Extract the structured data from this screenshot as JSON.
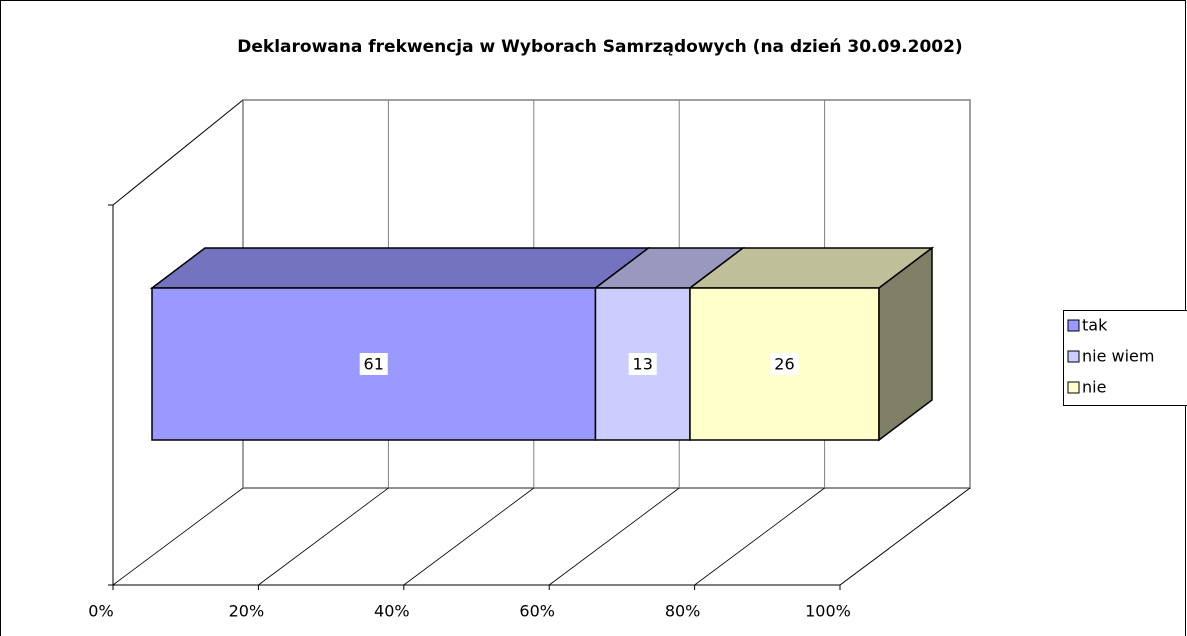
{
  "chart_data": {
    "type": "bar",
    "orientation": "horizontal",
    "stacked": true,
    "three_d": true,
    "title": "Deklarowana frekwencja w Wyborach Samrządowych (na dzień 30.09.2002)",
    "categories": [
      null
    ],
    "series": [
      {
        "name": "tak",
        "color": "#9999ff",
        "top_color": "#7373bf",
        "side_color": "#5c5c99",
        "values": [
          61
        ]
      },
      {
        "name": "nie wiem",
        "color": "#ccccff",
        "top_color": "#9999bf",
        "side_color": "#7a7a99",
        "values": [
          13
        ]
      },
      {
        "name": "nie",
        "color": "#ffffcc",
        "top_color": "#bfbf99",
        "side_color": "#808066",
        "values": [
          26
        ]
      }
    ],
    "xlim": [
      0,
      100
    ],
    "xticks": [
      {
        "value": 0,
        "label": "0%"
      },
      {
        "value": 20,
        "label": "20%"
      },
      {
        "value": 40,
        "label": "40%"
      },
      {
        "value": 60,
        "label": "60%"
      },
      {
        "value": 80,
        "label": "80%"
      },
      {
        "value": 100,
        "label": "100%"
      }
    ],
    "grid": true,
    "legend": "right",
    "data_labels": true
  }
}
